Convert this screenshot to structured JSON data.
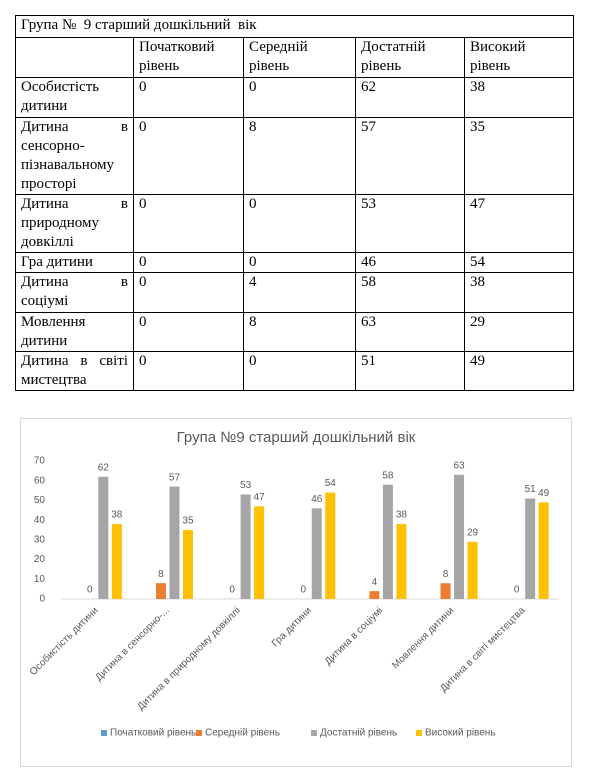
{
  "table": {
    "title": "Група №  9 старший дошкільний  вік",
    "header": [
      "Початковий рівень",
      "Середній рівень",
      "Достатній рівень",
      "Високий рівень"
    ],
    "rows": [
      [
        "Особистість дитини",
        0,
        0,
        62,
        38
      ],
      [
        "Дитина в сенсорно-пізнавальному просторі",
        0,
        8,
        57,
        35
      ],
      [
        "Дитина в природному довкіллі",
        0,
        0,
        53,
        47
      ],
      [
        "Гра дитини",
        0,
        0,
        46,
        54
      ],
      [
        "Дитина в соціумі",
        0,
        4,
        58,
        38
      ],
      [
        "Мовлення дитини",
        0,
        8,
        63,
        29
      ],
      [
        "Дитина в світі мистецтва",
        0,
        0,
        51,
        49
      ]
    ]
  },
  "chart_data": {
    "type": "bar",
    "title": "Група №9 старший дошкільний вік",
    "categories": [
      "Особистість дитини",
      "Дитина в сенсорно-...",
      "Дитина в природному довкіллі",
      "Гра дитини",
      "Дитина в соціумі",
      "Мовлення дитини",
      "Дитина в світі мистецтва"
    ],
    "series": [
      {
        "name": "Початковий рівень",
        "color": "#5b9bd5",
        "values": [
          0,
          0,
          0,
          0,
          0,
          0,
          0
        ],
        "data_labels": false
      },
      {
        "name": "Середній рівень",
        "color": "#ed7d31",
        "values": [
          0,
          8,
          0,
          0,
          4,
          8,
          0
        ],
        "data_labels": true
      },
      {
        "name": "Достатній рівень",
        "color": "#a5a5a5",
        "values": [
          62,
          57,
          53,
          46,
          58,
          63,
          51
        ],
        "data_labels": true
      },
      {
        "name": "Високий рівень",
        "color": "#ffc000",
        "values": [
          38,
          35,
          47,
          54,
          38,
          29,
          49
        ],
        "data_labels": true
      }
    ],
    "ylim": [
      0,
      70
    ],
    "yticks": [
      0,
      10,
      20,
      30,
      40,
      50,
      60,
      70
    ],
    "grid": false,
    "legend": "bottom"
  }
}
